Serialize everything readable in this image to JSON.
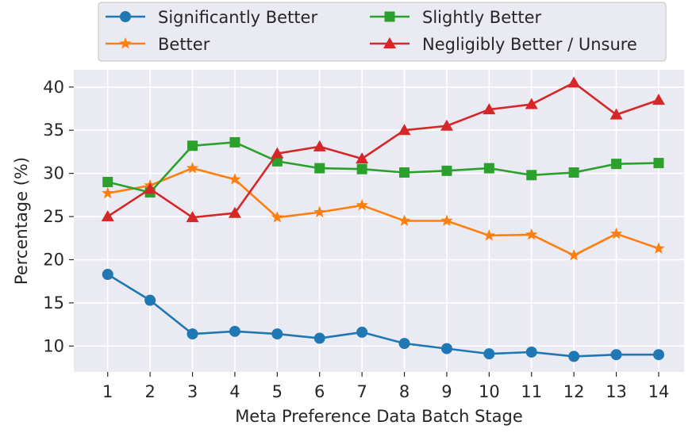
{
  "chart_data": {
    "type": "line",
    "title": "",
    "xlabel": "Meta Preference Data Batch Stage",
    "ylabel": "Percentage (%)",
    "x": [
      1,
      2,
      3,
      4,
      5,
      6,
      7,
      8,
      9,
      10,
      11,
      12,
      13,
      14
    ],
    "xlim": [
      0.2,
      14.6
    ],
    "ylim": [
      7,
      42
    ],
    "yticks": [
      10,
      15,
      20,
      25,
      30,
      35,
      40
    ],
    "grid": true,
    "legend_position": "top-center",
    "series": [
      {
        "name": "Significantly Better",
        "color": "#1f77b4",
        "marker": "circle",
        "values": [
          18.3,
          15.3,
          11.4,
          11.7,
          11.4,
          10.9,
          11.6,
          10.3,
          9.7,
          9.1,
          9.3,
          8.8,
          9.0,
          9.0
        ]
      },
      {
        "name": "Better",
        "color": "#ff7f0e",
        "marker": "star",
        "values": [
          27.7,
          28.6,
          30.6,
          29.3,
          24.9,
          25.5,
          26.3,
          24.5,
          24.5,
          22.8,
          22.9,
          20.5,
          23.0,
          21.3
        ]
      },
      {
        "name": "Slightly Better",
        "color": "#2ca02c",
        "marker": "square",
        "values": [
          29.0,
          27.8,
          33.2,
          33.6,
          31.4,
          30.6,
          30.5,
          30.1,
          30.3,
          30.6,
          29.8,
          30.1,
          31.1,
          31.2
        ]
      },
      {
        "name": "Negligibly Better / Unsure",
        "color": "#d62728",
        "marker": "triangle",
        "values": [
          25.0,
          28.2,
          24.9,
          25.4,
          32.3,
          33.1,
          31.7,
          35.0,
          35.5,
          37.4,
          38.0,
          40.5,
          36.8,
          38.5
        ]
      }
    ]
  }
}
